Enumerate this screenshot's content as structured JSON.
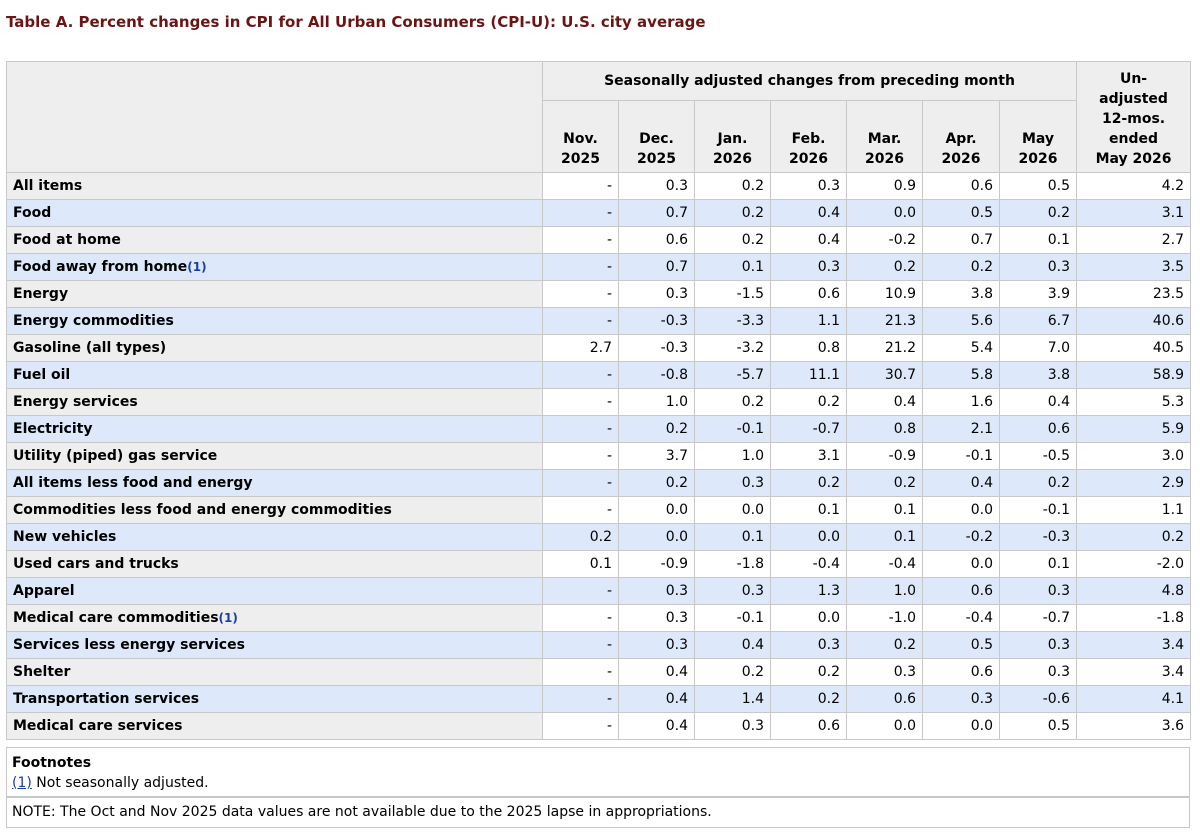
{
  "title": "Table A. Percent changes in CPI for All Urban Consumers (CPI-U): U.S. city average",
  "header": {
    "group_label": "Seasonally adjusted changes from preceding month",
    "unadjusted_lines": [
      "Un-",
      "adjusted",
      "12-mos.",
      "ended",
      "May 2026"
    ],
    "months": [
      {
        "m": "Nov.",
        "y": "2025"
      },
      {
        "m": "Dec.",
        "y": "2025"
      },
      {
        "m": "Jan.",
        "y": "2026"
      },
      {
        "m": "Feb.",
        "y": "2026"
      },
      {
        "m": "Mar.",
        "y": "2026"
      },
      {
        "m": "Apr.",
        "y": "2026"
      },
      {
        "m": "May",
        "y": "2026"
      }
    ]
  },
  "rows": [
    {
      "label": "All items",
      "indent": 0,
      "fn": "",
      "values": [
        "-",
        "0.3",
        "0.2",
        "0.3",
        "0.9",
        "0.6",
        "0.5",
        "4.2"
      ]
    },
    {
      "label": "Food",
      "indent": 1,
      "fn": "",
      "values": [
        "-",
        "0.7",
        "0.2",
        "0.4",
        "0.0",
        "0.5",
        "0.2",
        "3.1"
      ]
    },
    {
      "label": "Food at home",
      "indent": 2,
      "fn": "",
      "values": [
        "-",
        "0.6",
        "0.2",
        "0.4",
        "-0.2",
        "0.7",
        "0.1",
        "2.7"
      ]
    },
    {
      "label": "Food away from home",
      "indent": 2,
      "fn": "(1)",
      "values": [
        "-",
        "0.7",
        "0.1",
        "0.3",
        "0.2",
        "0.2",
        "0.3",
        "3.5"
      ]
    },
    {
      "label": "Energy",
      "indent": 1,
      "fn": "",
      "values": [
        "-",
        "0.3",
        "-1.5",
        "0.6",
        "10.9",
        "3.8",
        "3.9",
        "23.5"
      ]
    },
    {
      "label": "Energy commodities",
      "indent": 2,
      "fn": "",
      "values": [
        "-",
        "-0.3",
        "-3.3",
        "1.1",
        "21.3",
        "5.6",
        "6.7",
        "40.6"
      ]
    },
    {
      "label": "Gasoline (all types)",
      "indent": 3,
      "fn": "",
      "values": [
        "2.7",
        "-0.3",
        "-3.2",
        "0.8",
        "21.2",
        "5.4",
        "7.0",
        "40.5"
      ]
    },
    {
      "label": "Fuel oil",
      "indent": 3,
      "fn": "",
      "values": [
        "-",
        "-0.8",
        "-5.7",
        "11.1",
        "30.7",
        "5.8",
        "3.8",
        "58.9"
      ]
    },
    {
      "label": "Energy services",
      "indent": 2,
      "fn": "",
      "values": [
        "-",
        "1.0",
        "0.2",
        "0.2",
        "0.4",
        "1.6",
        "0.4",
        "5.3"
      ]
    },
    {
      "label": "Electricity",
      "indent": 3,
      "fn": "",
      "values": [
        "-",
        "0.2",
        "-0.1",
        "-0.7",
        "0.8",
        "2.1",
        "0.6",
        "5.9"
      ]
    },
    {
      "label": "Utility (piped) gas service",
      "indent": 3,
      "fn": "",
      "values": [
        "-",
        "3.7",
        "1.0",
        "3.1",
        "-0.9",
        "-0.1",
        "-0.5",
        "3.0"
      ]
    },
    {
      "label": "All items less food and energy",
      "indent": 1,
      "fn": "",
      "values": [
        "-",
        "0.2",
        "0.3",
        "0.2",
        "0.2",
        "0.4",
        "0.2",
        "2.9"
      ]
    },
    {
      "label": "Commodities less food and energy commodities",
      "indent": 2,
      "fn": "",
      "values": [
        "-",
        "0.0",
        "0.0",
        "0.1",
        "0.1",
        "0.0",
        "-0.1",
        "1.1"
      ]
    },
    {
      "label": "New vehicles",
      "indent": 3,
      "fn": "",
      "values": [
        "0.2",
        "0.0",
        "0.1",
        "0.0",
        "0.1",
        "-0.2",
        "-0.3",
        "0.2"
      ]
    },
    {
      "label": "Used cars and trucks",
      "indent": 3,
      "fn": "",
      "values": [
        "0.1",
        "-0.9",
        "-1.8",
        "-0.4",
        "-0.4",
        "0.0",
        "0.1",
        "-2.0"
      ]
    },
    {
      "label": "Apparel",
      "indent": 3,
      "fn": "",
      "values": [
        "-",
        "0.3",
        "0.3",
        "1.3",
        "1.0",
        "0.6",
        "0.3",
        "4.8"
      ]
    },
    {
      "label": "Medical care commodities",
      "indent": 3,
      "fn": "(1)",
      "values": [
        "-",
        "0.3",
        "-0.1",
        "0.0",
        "-1.0",
        "-0.4",
        "-0.7",
        "-1.8"
      ]
    },
    {
      "label": "Services less energy services",
      "indent": 2,
      "fn": "",
      "values": [
        "-",
        "0.3",
        "0.4",
        "0.3",
        "0.2",
        "0.5",
        "0.3",
        "3.4"
      ]
    },
    {
      "label": "Shelter",
      "indent": 3,
      "fn": "",
      "values": [
        "-",
        "0.4",
        "0.2",
        "0.2",
        "0.3",
        "0.6",
        "0.3",
        "3.4"
      ]
    },
    {
      "label": "Transportation services",
      "indent": 3,
      "fn": "",
      "values": [
        "-",
        "0.4",
        "1.4",
        "0.2",
        "0.6",
        "0.3",
        "-0.6",
        "4.1"
      ]
    },
    {
      "label": "Medical care services",
      "indent": 3,
      "fn": "",
      "values": [
        "-",
        "0.4",
        "0.3",
        "0.6",
        "0.0",
        "0.0",
        "0.5",
        "3.6"
      ]
    }
  ],
  "footnotes": {
    "title": "Footnotes",
    "items": [
      {
        "ref": "(1)",
        "text": " Not seasonally adjusted."
      }
    ]
  },
  "note": "NOTE: The Oct and Nov 2025 data values are not available due to the 2025 lapse in appropriations.",
  "colors": {
    "title": "#6b1414",
    "stripe_blue": "#dde9fb",
    "stub_gray": "#eeeeee",
    "link": "#1a3ea8",
    "border": "#c8c8c8"
  }
}
